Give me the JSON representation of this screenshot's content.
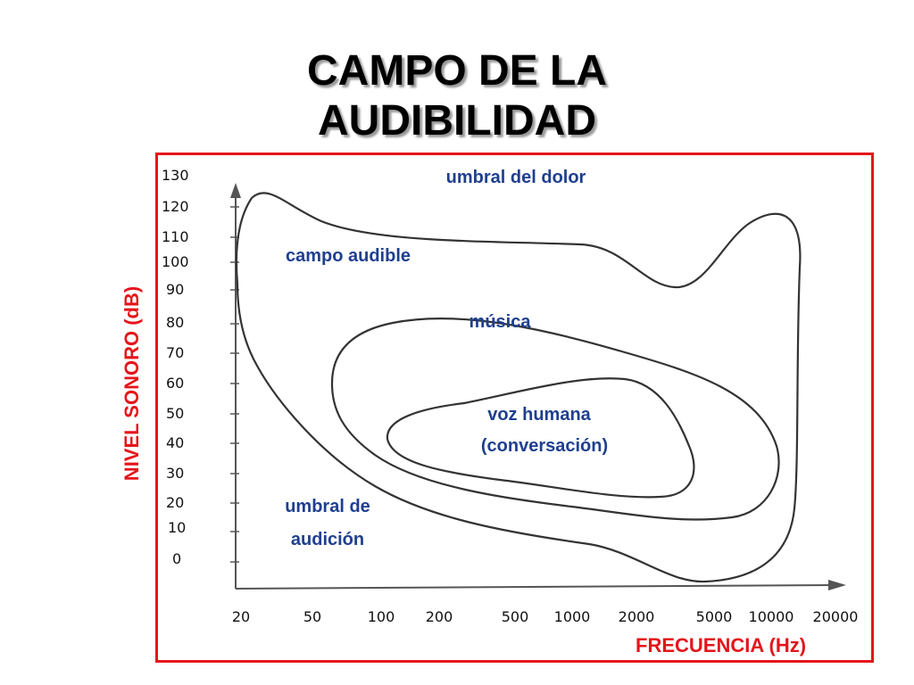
{
  "title": {
    "line1": "CAMPO DE LA",
    "line2": "AUDIBILIDAD"
  },
  "axes": {
    "ylabel": "NIVEL SONORO (dB)",
    "xlabel": "FRECUENCIA (Hz)",
    "y_ticks": [
      "130",
      "120",
      "110",
      "100",
      "90",
      "80",
      "70",
      "60",
      "50",
      "40",
      "30",
      "20",
      "10",
      "0"
    ],
    "x_ticks": [
      "20",
      "50",
      "100",
      "200",
      "500",
      "1000",
      "2000",
      "5000",
      "10000",
      "20000"
    ]
  },
  "regions": {
    "pain": "umbral del dolor",
    "audible": "campo audible",
    "music": "música",
    "voice_line1": "voz humana",
    "voice_line2": "(conversación)",
    "threshold_line1": "umbral de",
    "threshold_line2": "audición"
  },
  "colors": {
    "frame": "#e4151b",
    "labels": "#1f3f8f",
    "accent_text": "#e4151b"
  }
}
